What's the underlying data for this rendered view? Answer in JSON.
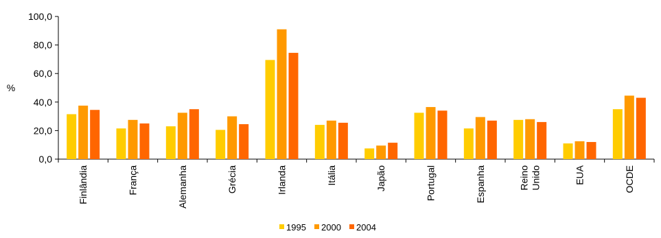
{
  "chart_data": {
    "type": "bar",
    "title": "",
    "xlabel": "",
    "ylabel": "%",
    "ylim": [
      0,
      100
    ],
    "yticks": [
      0,
      20,
      40,
      60,
      80,
      100
    ],
    "ytick_labels": [
      "0,0",
      "20,0",
      "40,0",
      "60,0",
      "80,0",
      "100,0"
    ],
    "grid": false,
    "legend_position": "bottom",
    "categories": [
      [
        "Finlândia"
      ],
      [
        "França"
      ],
      [
        "Alemanha"
      ],
      [
        "Grécia"
      ],
      [
        "Irlanda"
      ],
      [
        "Itália"
      ],
      [
        "Japão"
      ],
      [
        "Portugal"
      ],
      [
        "Espanha"
      ],
      [
        "Reino",
        "Unido"
      ],
      [
        "EUA"
      ],
      [
        "OCDE"
      ]
    ],
    "series": [
      {
        "name": "1995",
        "color": "#FFCC00",
        "values": [
          31.5,
          21.5,
          23.0,
          20.5,
          69.5,
          24.0,
          7.5,
          32.5,
          21.5,
          27.5,
          11.0,
          35.0
        ]
      },
      {
        "name": "2000",
        "color": "#FF9900",
        "values": [
          37.5,
          27.5,
          32.5,
          30.0,
          91.0,
          27.0,
          9.5,
          36.5,
          29.5,
          28.0,
          12.5,
          44.5
        ]
      },
      {
        "name": "2004",
        "color": "#FF6600",
        "values": [
          34.5,
          25.0,
          35.0,
          24.5,
          74.5,
          25.5,
          11.5,
          34.0,
          27.0,
          26.0,
          12.0,
          43.0
        ]
      }
    ]
  }
}
